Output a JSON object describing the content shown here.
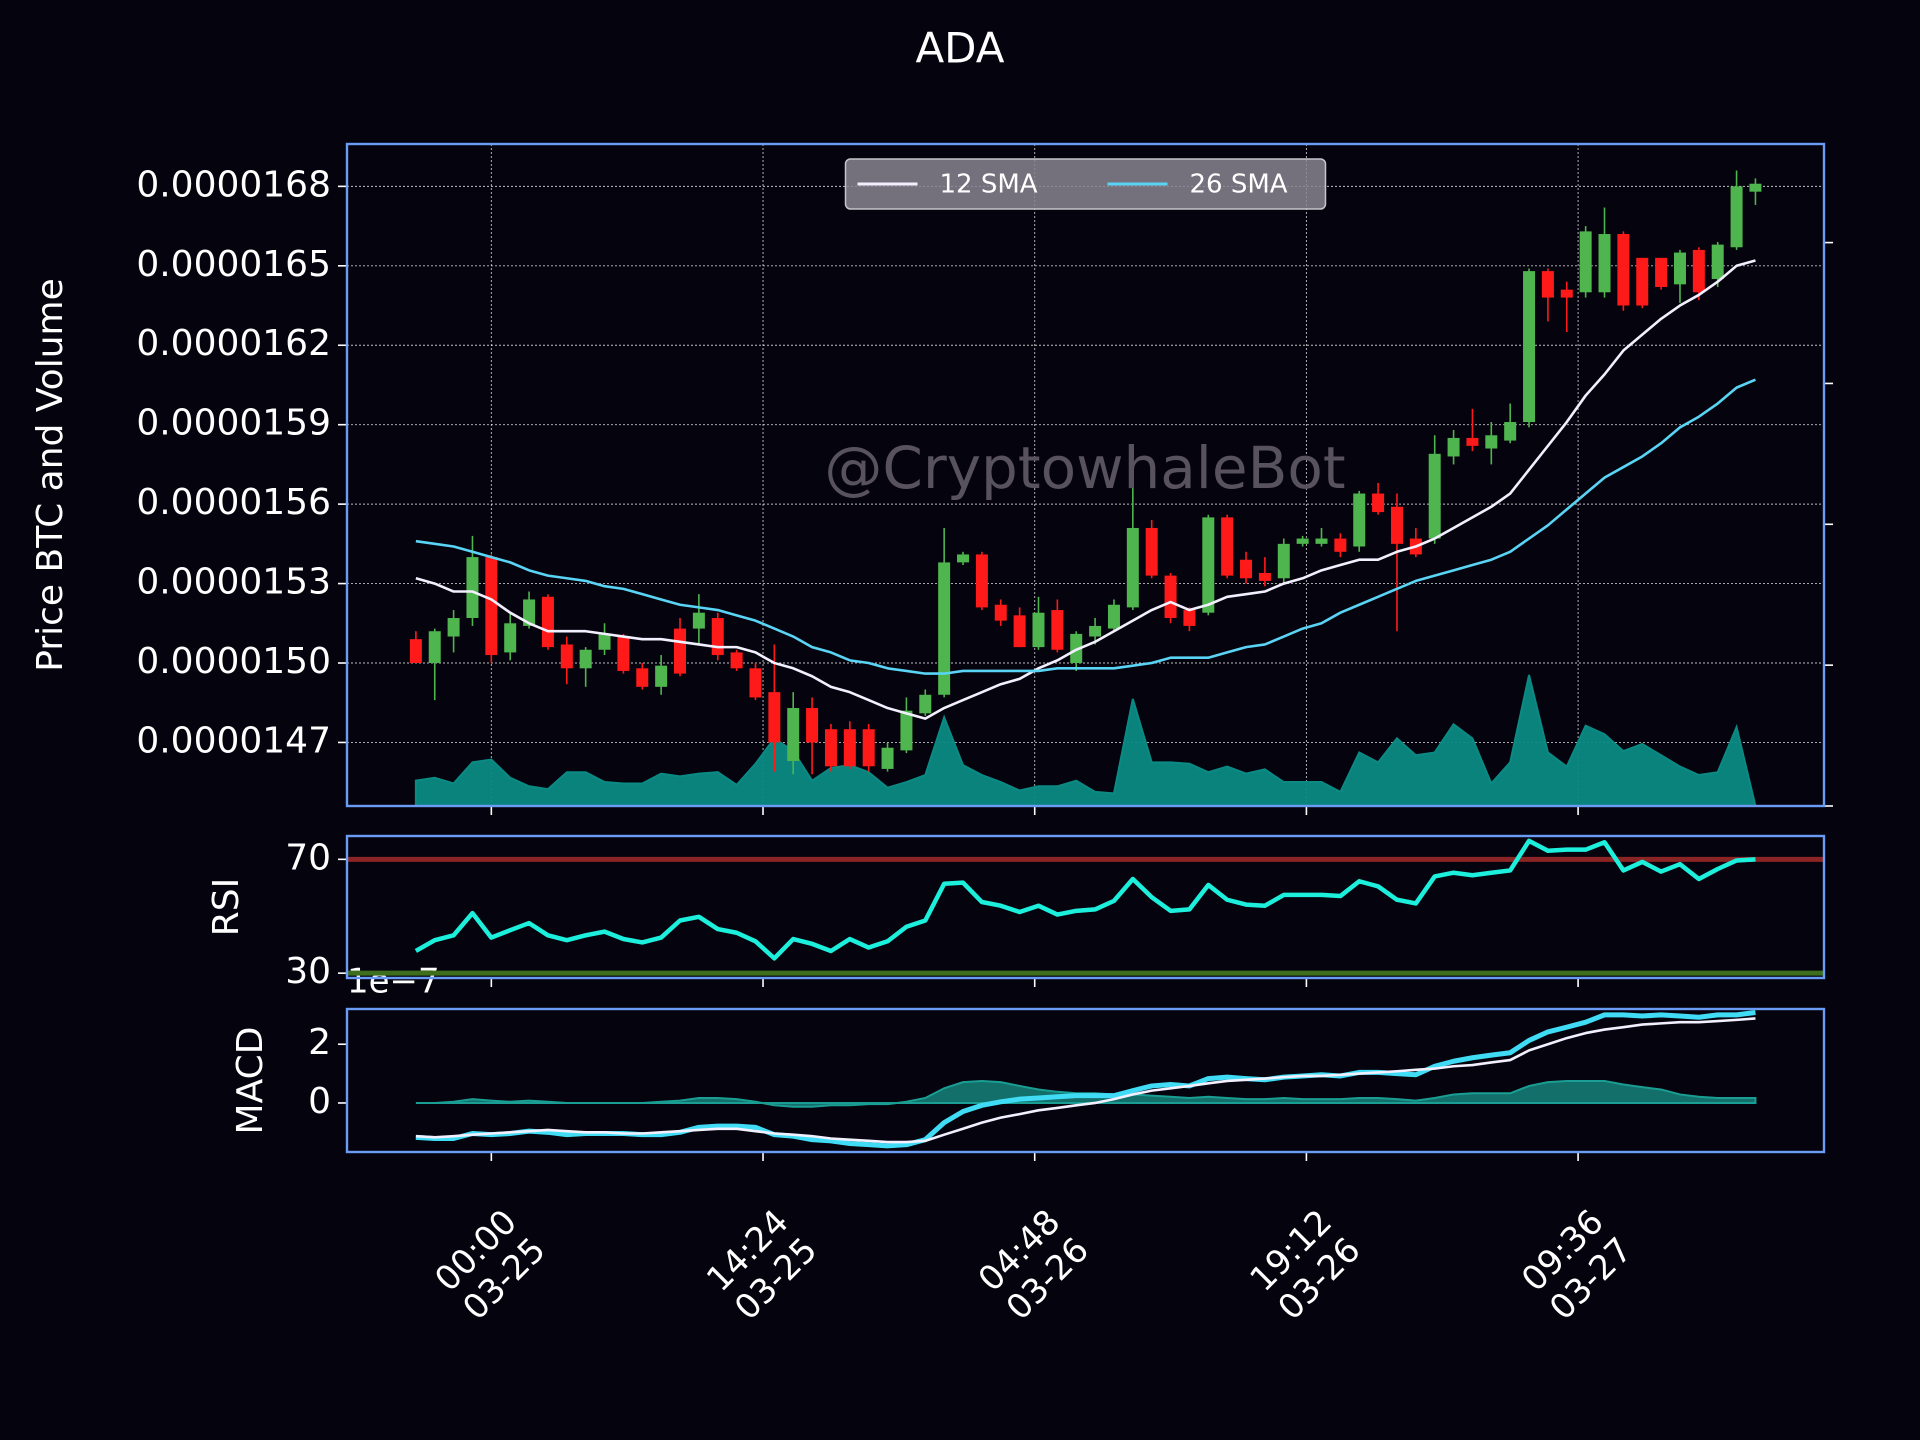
{
  "chart_data": [
    {
      "type": "candlestick",
      "title": "ADA",
      "ylabel": "Price BTC and Volume",
      "annotation": "@CryptowhaleBot",
      "x": [
        "03-24 20:00",
        "03-24 21:00",
        "03-24 22:00",
        "03-24 23:00",
        "03-25 00:00",
        "03-25 01:00",
        "03-25 02:00",
        "03-25 03:00",
        "03-25 04:00",
        "03-25 05:00",
        "03-25 06:00",
        "03-25 07:00",
        "03-25 08:00",
        "03-25 09:00",
        "03-25 10:00",
        "03-25 11:00",
        "03-25 12:00",
        "03-25 13:00",
        "03-25 14:00",
        "03-25 15:00",
        "03-25 16:00",
        "03-25 17:00",
        "03-25 18:00",
        "03-25 19:00",
        "03-25 20:00",
        "03-25 21:00",
        "03-25 22:00",
        "03-25 23:00",
        "03-26 00:00",
        "03-26 01:00",
        "03-26 02:00",
        "03-26 03:00",
        "03-26 04:00",
        "03-26 05:00",
        "03-26 06:00",
        "03-26 07:00",
        "03-26 08:00",
        "03-26 09:00",
        "03-26 10:00",
        "03-26 11:00",
        "03-26 12:00",
        "03-26 13:00",
        "03-26 14:00",
        "03-26 15:00",
        "03-26 16:00",
        "03-26 17:00",
        "03-26 18:00",
        "03-26 19:00",
        "03-26 20:00",
        "03-26 21:00",
        "03-26 22:00",
        "03-26 23:00",
        "03-27 00:00",
        "03-27 01:00",
        "03-27 02:00",
        "03-27 03:00",
        "03-27 04:00",
        "03-27 05:00",
        "03-27 06:00",
        "03-27 07:00",
        "03-27 08:00",
        "03-27 09:00",
        "03-27 10:00",
        "03-27 11:00",
        "03-27 12:00",
        "03-27 13:00",
        "03-27 14:00",
        "03-27 15:00",
        "03-27 16:00",
        "03-27 17:00",
        "03-27 18:00",
        "03-27 19:00"
      ],
      "open": [
        1.509e-05,
        1.5e-05,
        1.51e-05,
        1.517e-05,
        1.54e-05,
        1.504e-05,
        1.514e-05,
        1.525e-05,
        1.507e-05,
        1.498e-05,
        1.505e-05,
        1.51e-05,
        1.498e-05,
        1.491e-05,
        1.513e-05,
        1.513e-05,
        1.517e-05,
        1.504e-05,
        1.498e-05,
        1.489e-05,
        1.463e-05,
        1.483e-05,
        1.475e-05,
        1.475e-05,
        1.475e-05,
        1.46e-05,
        1.467e-05,
        1.481e-05,
        1.488e-05,
        1.538e-05,
        1.541e-05,
        1.522e-05,
        1.518e-05,
        1.506e-05,
        1.52e-05,
        1.5e-05,
        1.51e-05,
        1.513e-05,
        1.521e-05,
        1.551e-05,
        1.533e-05,
        1.52e-05,
        1.519e-05,
        1.555e-05,
        1.539e-05,
        1.534e-05,
        1.532e-05,
        1.545e-05,
        1.545e-05,
        1.547e-05,
        1.544e-05,
        1.564e-05,
        1.559e-05,
        1.547e-05,
        1.547e-05,
        1.578e-05,
        1.585e-05,
        1.581e-05,
        1.584e-05,
        1.591e-05,
        1.648e-05,
        1.641e-05,
        1.64e-05,
        1.64e-05,
        1.662e-05,
        1.653e-05,
        1.653e-05,
        1.643e-05,
        1.656e-05,
        1.645e-05,
        1.657e-05,
        1.678e-05
      ],
      "high": [
        1.512e-05,
        1.513e-05,
        1.52e-05,
        1.548e-05,
        1.541e-05,
        1.519e-05,
        1.527e-05,
        1.526e-05,
        1.51e-05,
        1.506e-05,
        1.515e-05,
        1.511e-05,
        1.5e-05,
        1.503e-05,
        1.517e-05,
        1.526e-05,
        1.519e-05,
        1.505e-05,
        1.5e-05,
        1.507e-05,
        1.489e-05,
        1.487e-05,
        1.477e-05,
        1.478e-05,
        1.477e-05,
        1.47e-05,
        1.487e-05,
        1.49e-05,
        1.551e-05,
        1.542e-05,
        1.542e-05,
        1.524e-05,
        1.521e-05,
        1.525e-05,
        1.524e-05,
        1.512e-05,
        1.517e-05,
        1.524e-05,
        1.569e-05,
        1.554e-05,
        1.534e-05,
        1.521e-05,
        1.556e-05,
        1.556e-05,
        1.542e-05,
        1.54e-05,
        1.547e-05,
        1.548e-05,
        1.551e-05,
        1.549e-05,
        1.565e-05,
        1.568e-05,
        1.564e-05,
        1.551e-05,
        1.586e-05,
        1.588e-05,
        1.596e-05,
        1.591e-05,
        1.598e-05,
        1.649e-05,
        1.649e-05,
        1.644e-05,
        1.665e-05,
        1.672e-05,
        1.663e-05,
        1.653e-05,
        1.653e-05,
        1.656e-05,
        1.657e-05,
        1.659e-05,
        1.686e-05,
        1.683e-05
      ],
      "low": [
        1.5e-05,
        1.486e-05,
        1.504e-05,
        1.514e-05,
        1.5e-05,
        1.501e-05,
        1.513e-05,
        1.505e-05,
        1.492e-05,
        1.491e-05,
        1.503e-05,
        1.496e-05,
        1.49e-05,
        1.488e-05,
        1.495e-05,
        1.507e-05,
        1.501e-05,
        1.497e-05,
        1.486e-05,
        1.459e-05,
        1.458e-05,
        1.458e-05,
        1.459e-05,
        1.46e-05,
        1.459e-05,
        1.459e-05,
        1.466e-05,
        1.48e-05,
        1.487e-05,
        1.537e-05,
        1.52e-05,
        1.514e-05,
        1.506e-05,
        1.505e-05,
        1.504e-05,
        1.497e-05,
        1.507e-05,
        1.512e-05,
        1.52e-05,
        1.532e-05,
        1.515e-05,
        1.512e-05,
        1.518e-05,
        1.532e-05,
        1.53e-05,
        1.529e-05,
        1.53e-05,
        1.544e-05,
        1.544e-05,
        1.54e-05,
        1.542e-05,
        1.556e-05,
        1.512e-05,
        1.54e-05,
        1.545e-05,
        1.575e-05,
        1.58e-05,
        1.575e-05,
        1.583e-05,
        1.589e-05,
        1.629e-05,
        1.625e-05,
        1.638e-05,
        1.638e-05,
        1.633e-05,
        1.634e-05,
        1.641e-05,
        1.636e-05,
        1.637e-05,
        1.642e-05,
        1.656e-05,
        1.673e-05
      ],
      "close": [
        1.5e-05,
        1.512e-05,
        1.517e-05,
        1.54e-05,
        1.503e-05,
        1.515e-05,
        1.524e-05,
        1.506e-05,
        1.498e-05,
        1.505e-05,
        1.511e-05,
        1.497e-05,
        1.491e-05,
        1.499e-05,
        1.496e-05,
        1.519e-05,
        1.503e-05,
        1.498e-05,
        1.487e-05,
        1.47e-05,
        1.483e-05,
        1.47e-05,
        1.461e-05,
        1.461e-05,
        1.461e-05,
        1.468e-05,
        1.482e-05,
        1.488e-05,
        1.538e-05,
        1.541e-05,
        1.521e-05,
        1.516e-05,
        1.506e-05,
        1.519e-05,
        1.505e-05,
        1.511e-05,
        1.514e-05,
        1.522e-05,
        1.551e-05,
        1.533e-05,
        1.517e-05,
        1.514e-05,
        1.555e-05,
        1.533e-05,
        1.532e-05,
        1.531e-05,
        1.545e-05,
        1.547e-05,
        1.547e-05,
        1.542e-05,
        1.564e-05,
        1.557e-05,
        1.545e-05,
        1.541e-05,
        1.579e-05,
        1.585e-05,
        1.582e-05,
        1.586e-05,
        1.591e-05,
        1.648e-05,
        1.638e-05,
        1.638e-05,
        1.663e-05,
        1.662e-05,
        1.635e-05,
        1.635e-05,
        1.642e-05,
        1.655e-05,
        1.64e-05,
        1.658e-05,
        1.68e-05,
        1.681e-05
      ],
      "up_color": "#4fb54f",
      "down_color": "#ff1a1a",
      "series": [
        {
          "color": "#0b8a84",
          "axis": "y2",
          "kind": "area",
          "values": [
            0.18,
            0.2,
            0.16,
            0.31,
            0.33,
            0.2,
            0.14,
            0.12,
            0.24,
            0.24,
            0.17,
            0.16,
            0.16,
            0.23,
            0.21,
            0.23,
            0.24,
            0.15,
            0.3,
            0.48,
            0.39,
            0.18,
            0.27,
            0.29,
            0.24,
            0.13,
            0.17,
            0.22,
            0.63,
            0.29,
            0.22,
            0.17,
            0.11,
            0.14,
            0.14,
            0.18,
            0.1,
            0.09,
            0.76,
            0.31,
            0.31,
            0.3,
            0.24,
            0.28,
            0.23,
            0.26,
            0.17,
            0.17,
            0.17,
            0.1,
            0.38,
            0.31,
            0.48,
            0.36,
            0.38,
            0.58,
            0.48,
            0.16,
            0.31,
            0.93,
            0.38,
            0.28,
            0.57,
            0.51,
            0.39,
            0.44,
            0.36,
            0.28,
            0.22,
            0.24,
            0.56,
            0
          ]
        },
        {
          "name": "12 SMA",
          "color": "#f2f0ff",
          "values": [
            1.532e-05,
            1.53e-05,
            1.527e-05,
            1.527e-05,
            1.524e-05,
            1.519e-05,
            1.515e-05,
            1.512e-05,
            1.512e-05,
            1.512e-05,
            1.511e-05,
            1.51e-05,
            1.509e-05,
            1.509e-05,
            1.508e-05,
            1.507e-05,
            1.506e-05,
            1.506e-05,
            1.504e-05,
            1.5e-05,
            1.498e-05,
            1.495e-05,
            1.491e-05,
            1.489e-05,
            1.486e-05,
            1.483e-05,
            1.481e-05,
            1.479e-05,
            1.483e-05,
            1.486e-05,
            1.489e-05,
            1.492e-05,
            1.494e-05,
            1.498e-05,
            1.501e-05,
            1.505e-05,
            1.508e-05,
            1.512e-05,
            1.516e-05,
            1.52e-05,
            1.523e-05,
            1.52e-05,
            1.522e-05,
            1.525e-05,
            1.526e-05,
            1.527e-05,
            1.53e-05,
            1.532e-05,
            1.535e-05,
            1.537e-05,
            1.539e-05,
            1.539e-05,
            1.542e-05,
            1.544e-05,
            1.547e-05,
            1.551e-05,
            1.555e-05,
            1.559e-05,
            1.564e-05,
            1.573e-05,
            1.582e-05,
            1.591e-05,
            1.601e-05,
            1.609e-05,
            1.618e-05,
            1.624e-05,
            1.63e-05,
            1.635e-05,
            1.639e-05,
            1.644e-05,
            1.65e-05,
            1.652e-05
          ]
        },
        {
          "name": "26 SMA",
          "color": "#5ad4f5",
          "values": [
            1.546e-05,
            1.545e-05,
            1.544e-05,
            1.542e-05,
            1.54e-05,
            1.538e-05,
            1.535e-05,
            1.533e-05,
            1.532e-05,
            1.531e-05,
            1.529e-05,
            1.528e-05,
            1.526e-05,
            1.524e-05,
            1.522e-05,
            1.521e-05,
            1.52e-05,
            1.518e-05,
            1.516e-05,
            1.513e-05,
            1.51e-05,
            1.506e-05,
            1.504e-05,
            1.501e-05,
            1.5e-05,
            1.498e-05,
            1.497e-05,
            1.496e-05,
            1.496e-05,
            1.497e-05,
            1.497e-05,
            1.497e-05,
            1.497e-05,
            1.497e-05,
            1.498e-05,
            1.498e-05,
            1.498e-05,
            1.498e-05,
            1.499e-05,
            1.5e-05,
            1.502e-05,
            1.502e-05,
            1.502e-05,
            1.504e-05,
            1.506e-05,
            1.507e-05,
            1.51e-05,
            1.513e-05,
            1.515e-05,
            1.519e-05,
            1.522e-05,
            1.525e-05,
            1.528e-05,
            1.531e-05,
            1.533e-05,
            1.535e-05,
            1.537e-05,
            1.539e-05,
            1.542e-05,
            1.547e-05,
            1.552e-05,
            1.558e-05,
            1.564e-05,
            1.57e-05,
            1.574e-05,
            1.578e-05,
            1.583e-05,
            1.589e-05,
            1.593e-05,
            1.598e-05,
            1.604e-05,
            1.607e-05
          ]
        }
      ],
      "xlim": [
        "03-24 16:21",
        "03-27 22:38"
      ],
      "xticks": [
        {
          "value": "03-25 00:00",
          "label": [
            "00:00",
            "03-25"
          ]
        },
        {
          "value": "03-25 14:24",
          "label": [
            "14:24",
            "03-25"
          ]
        },
        {
          "value": "03-26 04:48",
          "label": [
            "04:48",
            "03-26"
          ]
        },
        {
          "value": "03-26 19:12",
          "label": [
            "19:12",
            "03-26"
          ]
        },
        {
          "value": "03-27 09:36",
          "label": [
            "09:36",
            "03-27"
          ]
        }
      ],
      "ylim": [
        1.446e-05,
        1.696e-05
      ],
      "yticks": [
        1.47e-05,
        {
          "value": 1.5e-05,
          "label": "0.0000150"
        },
        1.53e-05,
        1.56e-05,
        1.59e-05,
        1.62e-05,
        1.65e-05,
        1.68e-05
      ],
      "y2lim": [
        0,
        4.7
      ],
      "y2ticks": [
        0,
        1,
        2,
        3,
        4
      ],
      "grid": true,
      "legend": "upper center"
    },
    {
      "type": "line",
      "ylabel": "RSI",
      "color": "#1cf0dc",
      "values": [
        37.8,
        41.6,
        43.3,
        51.1,
        42.5,
        45.1,
        47.6,
        43.3,
        41.6,
        43.3,
        44.6,
        42,
        40.8,
        42.5,
        48.5,
        49.8,
        45.5,
        44.2,
        41.2,
        35.2,
        42,
        40.3,
        37.8,
        42,
        39,
        41.2,
        46.3,
        48.5,
        61.4,
        61.8,
        55,
        53.7,
        51.5,
        53.7,
        50.6,
        51.9,
        52.4,
        55.4,
        63.1,
        56.7,
        51.9,
        52.4,
        61,
        55.8,
        54.1,
        53.7,
        57.5,
        57.5,
        57.5,
        57.1,
        62.3,
        60.5,
        55.8,
        54.5,
        64,
        65.3,
        64.4,
        65.3,
        66.1,
        76.5,
        73,
        73.4,
        73.4,
        76,
        66.1,
        69.1,
        65.7,
        68.3,
        63.1,
        66.6,
        69.6,
        70
      ],
      "ylim": [
        28.3,
        78.2
      ],
      "yticks": [
        30,
        70
      ],
      "hlines": [
        {
          "value": 70,
          "color": "#8b2525"
        },
        {
          "value": 30,
          "color": "#3c6e1e"
        }
      ]
    },
    {
      "type": "line",
      "ylabel": "MACD",
      "offset_label": "1e−7",
      "series": [
        {
          "color": "#1a9e93",
          "kind": "area",
          "values": [
            0,
            0,
            0.04,
            0.13,
            0.08,
            0.04,
            0.08,
            0.04,
            0,
            0,
            0,
            0,
            0,
            0.04,
            0.08,
            0.17,
            0.17,
            0.13,
            0.04,
            -0.08,
            -0.13,
            -0.13,
            -0.08,
            -0.08,
            -0.04,
            -0.04,
            0.04,
            0.17,
            0.5,
            0.71,
            0.75,
            0.71,
            0.58,
            0.46,
            0.38,
            0.33,
            0.33,
            0.29,
            0.29,
            0.25,
            0.21,
            0.17,
            0.21,
            0.17,
            0.13,
            0.13,
            0.17,
            0.13,
            0.13,
            0.13,
            0.17,
            0.17,
            0.13,
            0.08,
            0.17,
            0.29,
            0.33,
            0.33,
            0.33,
            0.58,
            0.71,
            0.75,
            0.75,
            0.75,
            0.63,
            0.54,
            0.46,
            0.29,
            0.21,
            0.17,
            0.17,
            0.17
          ]
        },
        {
          "color": "#40dcf5",
          "values": [
            -1.17,
            -1.21,
            -1.21,
            -1.04,
            -1.08,
            -1.04,
            -0.96,
            -1.0,
            -1.08,
            -1.04,
            -1.04,
            -1.04,
            -1.08,
            -1.08,
            -1.0,
            -0.83,
            -0.79,
            -0.79,
            -0.83,
            -1.08,
            -1.13,
            -1.25,
            -1.29,
            -1.38,
            -1.42,
            -1.46,
            -1.42,
            -1.25,
            -0.67,
            -0.29,
            -0.08,
            0.04,
            0.13,
            0.17,
            0.21,
            0.25,
            0.25,
            0.25,
            0.42,
            0.58,
            0.63,
            0.58,
            0.83,
            0.88,
            0.83,
            0.79,
            0.88,
            0.92,
            0.96,
            0.92,
            1.04,
            1.04,
            1.0,
            0.96,
            1.25,
            1.42,
            1.54,
            1.63,
            1.71,
            2.13,
            2.42,
            2.58,
            2.75,
            3.0,
            3.0,
            2.96,
            3.0,
            2.96,
            2.92,
            3.0,
            3.0,
            3.08
          ]
        },
        {
          "color": "#f2f0ff",
          "values": [
            -1.13,
            -1.17,
            -1.13,
            -1.08,
            -1.04,
            -1.0,
            -0.96,
            -0.92,
            -0.96,
            -1.0,
            -1.0,
            -1.04,
            -1.04,
            -1.0,
            -0.96,
            -0.92,
            -0.88,
            -0.88,
            -0.96,
            -1.04,
            -1.08,
            -1.13,
            -1.21,
            -1.25,
            -1.29,
            -1.33,
            -1.33,
            -1.29,
            -1.08,
            -0.88,
            -0.67,
            -0.5,
            -0.38,
            -0.25,
            -0.17,
            -0.08,
            0,
            0.13,
            0.29,
            0.42,
            0.5,
            0.58,
            0.67,
            0.75,
            0.79,
            0.83,
            0.88,
            0.92,
            0.92,
            0.96,
            1.0,
            1.04,
            1.08,
            1.13,
            1.17,
            1.25,
            1.29,
            1.38,
            1.46,
            1.79,
            2.0,
            2.21,
            2.38,
            2.5,
            2.58,
            2.67,
            2.71,
            2.75,
            2.75,
            2.79,
            2.83,
            2.88
          ]
        }
      ],
      "ylim": [
        -1.67,
        3.2
      ],
      "yticks": [
        0,
        2
      ]
    }
  ]
}
